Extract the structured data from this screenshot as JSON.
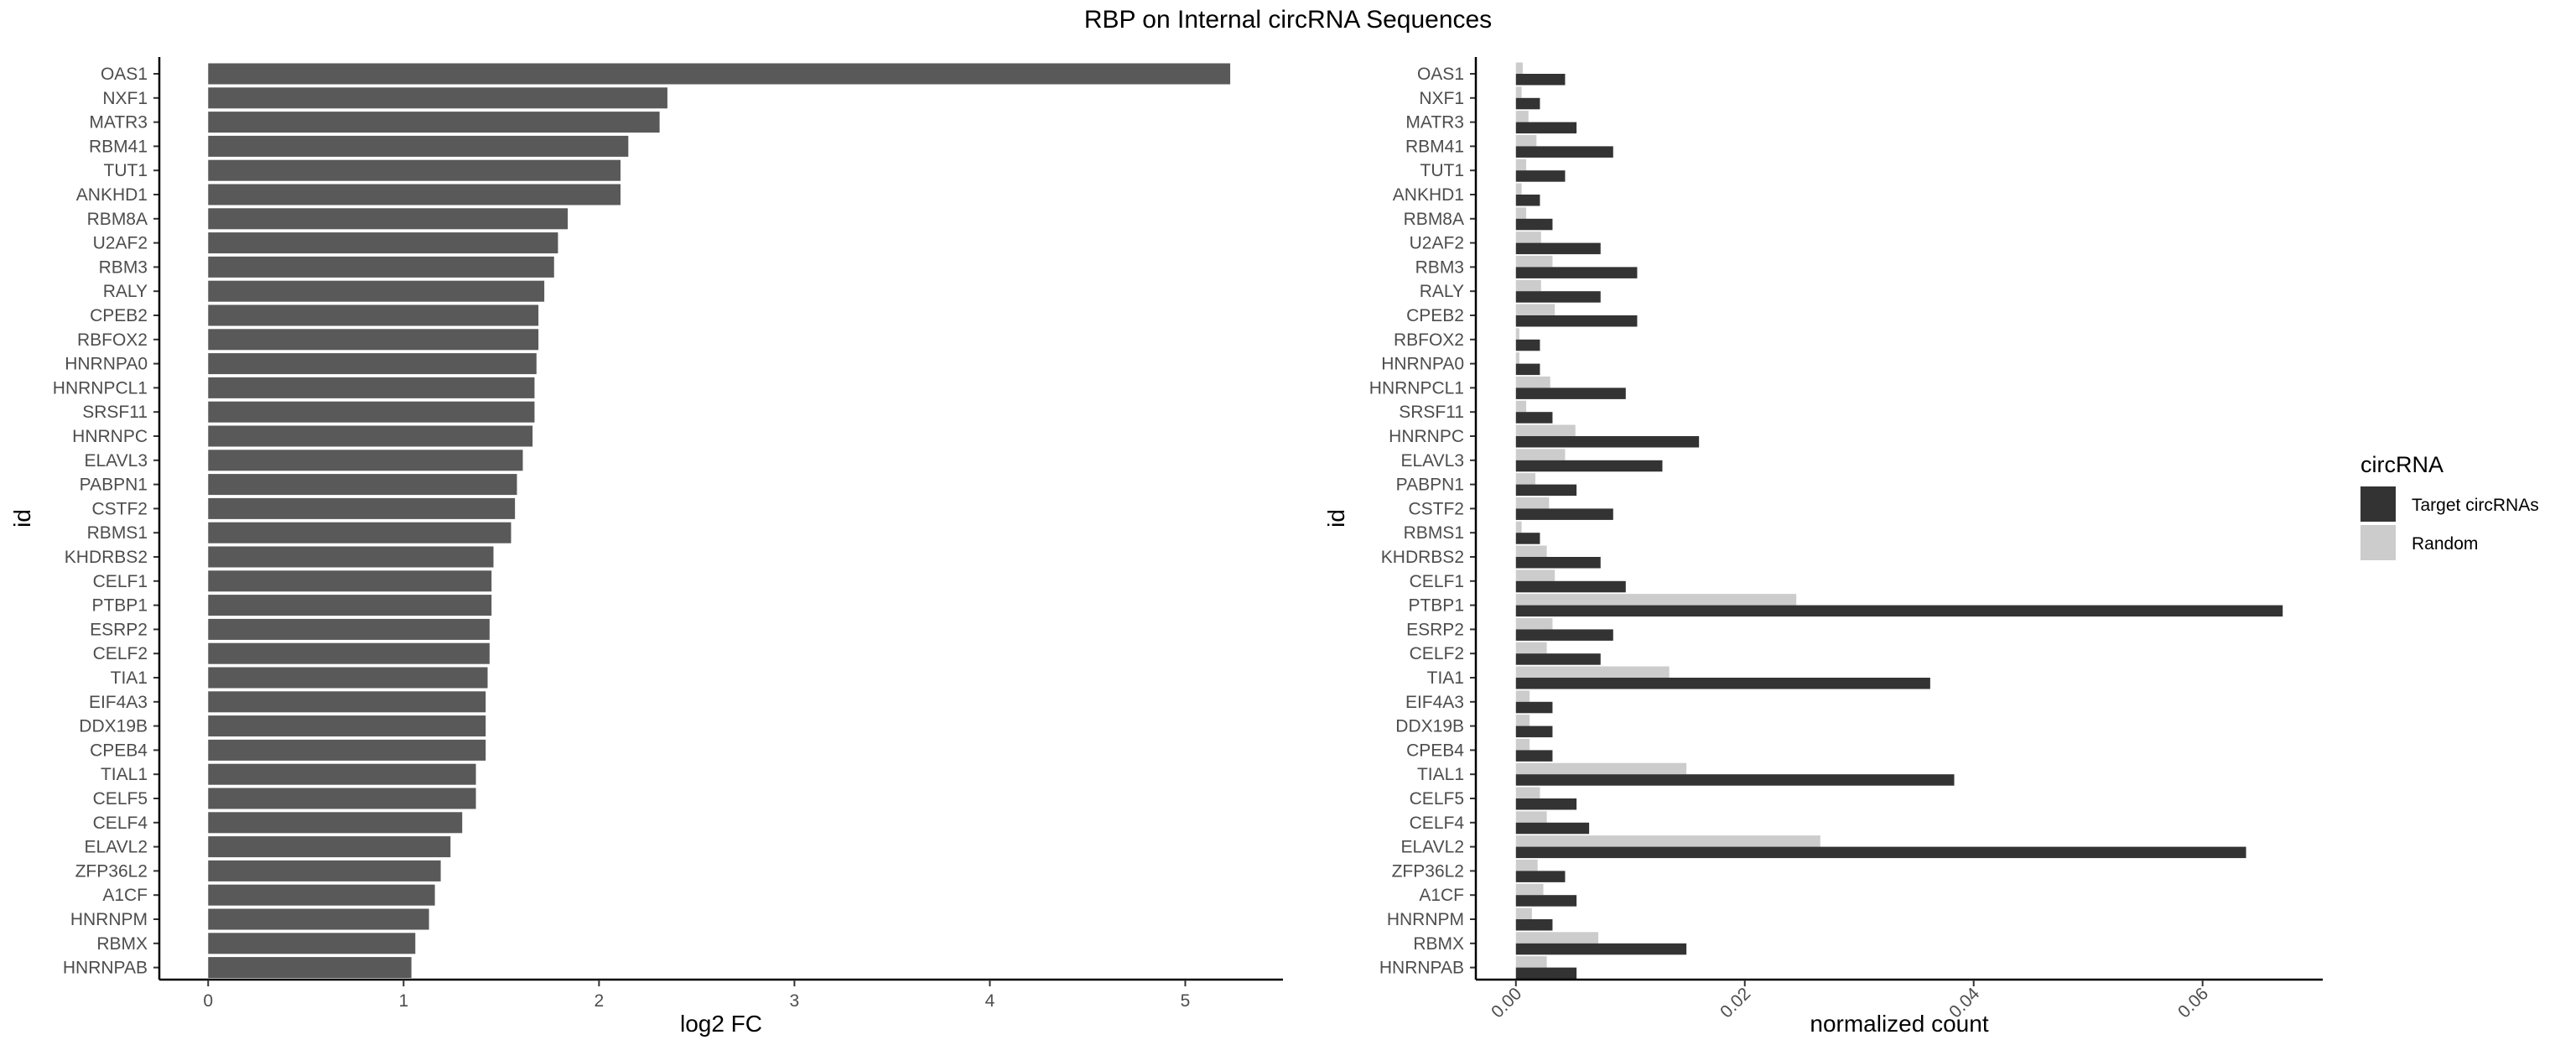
{
  "title": "RBP on Internal circRNA Sequences",
  "chart_data": [
    {
      "type": "bar",
      "orientation": "horizontal",
      "xlabel": "log2 FC",
      "ylabel": "id",
      "xlim": [
        -0.25,
        5.5
      ],
      "xticks": [
        0,
        1,
        2,
        3,
        4,
        5
      ],
      "xtick_labels": [
        "0",
        "1",
        "2",
        "3",
        "4",
        "5"
      ],
      "color": "#595959",
      "categories": [
        "OAS1",
        "NXF1",
        "MATR3",
        "RBM41",
        "TUT1",
        "ANKHD1",
        "RBM8A",
        "U2AF2",
        "RBM3",
        "RALY",
        "CPEB2",
        "RBFOX2",
        "HNRNPA0",
        "HNRNPCL1",
        "SRSF11",
        "HNRNPC",
        "ELAVL3",
        "PABPN1",
        "CSTF2",
        "RBMS1",
        "KHDRBS2",
        "CELF1",
        "PTBP1",
        "ESRP2",
        "CELF2",
        "TIA1",
        "EIF4A3",
        "DDX19B",
        "CPEB4",
        "TIAL1",
        "CELF5",
        "CELF4",
        "ELAVL2",
        "ZFP36L2",
        "A1CF",
        "HNRNPM",
        "RBMX",
        "HNRNPAB"
      ],
      "values": [
        5.23,
        2.35,
        2.31,
        2.15,
        2.11,
        2.11,
        1.84,
        1.79,
        1.77,
        1.72,
        1.69,
        1.69,
        1.68,
        1.67,
        1.67,
        1.66,
        1.61,
        1.58,
        1.57,
        1.55,
        1.46,
        1.45,
        1.45,
        1.44,
        1.44,
        1.43,
        1.42,
        1.42,
        1.42,
        1.37,
        1.37,
        1.3,
        1.24,
        1.19,
        1.16,
        1.13,
        1.06,
        1.04
      ]
    },
    {
      "type": "bar",
      "orientation": "horizontal",
      "xlabel": "normalized count",
      "ylabel": "id",
      "xlim": [
        -0.0035,
        0.0705
      ],
      "xticks": [
        0,
        0.02,
        0.04,
        0.06
      ],
      "xtick_labels": [
        "0.00",
        "0.02",
        "0.04",
        "0.06"
      ],
      "legend": {
        "title": "circRNA",
        "position": "right"
      },
      "categories": [
        "OAS1",
        "NXF1",
        "MATR3",
        "RBM41",
        "TUT1",
        "ANKHD1",
        "RBM8A",
        "U2AF2",
        "RBM3",
        "RALY",
        "CPEB2",
        "RBFOX2",
        "HNRNPA0",
        "HNRNPCL1",
        "SRSF11",
        "HNRNPC",
        "ELAVL3",
        "PABPN1",
        "CSTF2",
        "RBMS1",
        "KHDRBS2",
        "CELF1",
        "PTBP1",
        "ESRP2",
        "CELF2",
        "TIA1",
        "EIF4A3",
        "DDX19B",
        "CPEB4",
        "TIAL1",
        "CELF5",
        "CELF4",
        "ELAVL2",
        "ZFP36L2",
        "A1CF",
        "HNRNPM",
        "RBMX",
        "HNRNPAB"
      ],
      "series": [
        {
          "name": "Target circRNAs",
          "color": "#333333",
          "values": [
            0.0043,
            0.0021,
            0.0053,
            0.0085,
            0.0043,
            0.0021,
            0.0032,
            0.0074,
            0.0106,
            0.0074,
            0.0106,
            0.0021,
            0.0021,
            0.0096,
            0.0032,
            0.016,
            0.0128,
            0.0053,
            0.0085,
            0.0021,
            0.0074,
            0.0096,
            0.067,
            0.0085,
            0.0074,
            0.0362,
            0.0032,
            0.0032,
            0.0032,
            0.0383,
            0.0053,
            0.0064,
            0.0638,
            0.0043,
            0.0053,
            0.0032,
            0.0149,
            0.0053
          ]
        },
        {
          "name": "Random",
          "color": "#cccccc",
          "values": [
            0.0006,
            0.0005,
            0.0011,
            0.0018,
            0.0009,
            0.0005,
            0.0009,
            0.0022,
            0.0032,
            0.0022,
            0.0034,
            0.0003,
            0.0003,
            0.003,
            0.0009,
            0.0052,
            0.0043,
            0.0017,
            0.0029,
            0.0005,
            0.0027,
            0.0034,
            0.0245,
            0.0032,
            0.0027,
            0.0134,
            0.0012,
            0.0012,
            0.0012,
            0.0149,
            0.0021,
            0.0027,
            0.0266,
            0.0019,
            0.0024,
            0.0014,
            0.0072,
            0.0027
          ]
        }
      ]
    }
  ]
}
